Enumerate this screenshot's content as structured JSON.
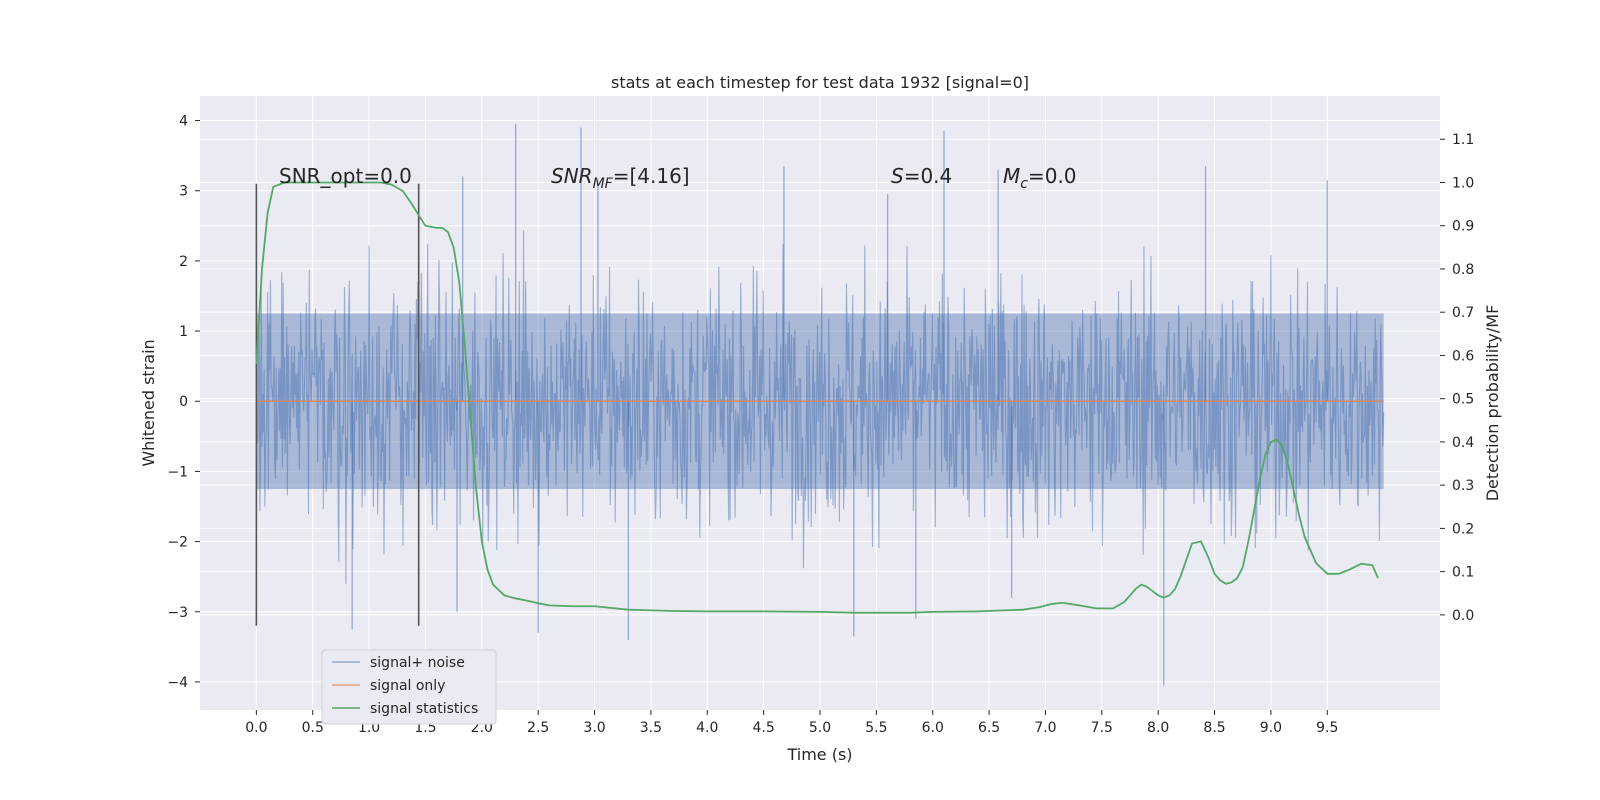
{
  "chart_data": {
    "type": "line",
    "title": "stats at each timestep for test data 1932 [signal=0]",
    "xlabel": "Time (s)",
    "ylabel": "Whitened strain",
    "ylabel_right": "Detection probability/MF",
    "xlim": [
      -0.5,
      10.5
    ],
    "ylim": [
      -4.4,
      4.35
    ],
    "ylim_right": [
      -0.22,
      1.2
    ],
    "xticks": [
      "0.0",
      "0.5",
      "1.0",
      "1.5",
      "2.0",
      "2.5",
      "3.0",
      "3.5",
      "4.0",
      "4.5",
      "5.0",
      "5.5",
      "6.0",
      "6.5",
      "7.0",
      "7.5",
      "8.0",
      "8.5",
      "9.0",
      "9.5"
    ],
    "yticks": [
      "4",
      "3",
      "2",
      "1",
      "0",
      "−1",
      "−2",
      "−3",
      "−4"
    ],
    "yticks_right": [
      "1.1",
      "1.0",
      "0.9",
      "0.8",
      "0.7",
      "0.6",
      "0.5",
      "0.4",
      "0.3",
      "0.2",
      "0.1",
      "0.0"
    ],
    "grid": true,
    "legend_position": "lower-left",
    "annotations": {
      "snr_opt": "SNR_opt=0.0",
      "snr_mf_base": "SNR",
      "snr_mf_sub": "MF",
      "snr_mf_rest": "=[4.16]",
      "s_sym": "S",
      "s_rest": "=0.4",
      "mc_base": "M",
      "mc_sub": "c",
      "mc_rest": "=0.0"
    },
    "markers": {
      "vertical_lines_x": [
        0.0,
        1.44
      ],
      "vertical_lines_y": [
        -3.2,
        3.1
      ]
    },
    "series": [
      {
        "name": "signal+ noise",
        "color": "#4c72b0",
        "kind": "noise",
        "x_range": [
          0.0,
          10.0
        ],
        "envelope_typical": 1.3,
        "peak_values": [
          [
            2.3,
            3.95
          ],
          [
            2.88,
            3.9
          ],
          [
            6.1,
            3.85
          ],
          [
            1.83,
            3.2
          ],
          [
            3.03,
            3.15
          ],
          [
            4.68,
            3.35
          ],
          [
            5.6,
            2.95
          ],
          [
            6.58,
            3.3
          ],
          [
            8.42,
            3.35
          ],
          [
            9.5,
            3.15
          ],
          [
            3.3,
            -3.4
          ],
          [
            8.05,
            -4.05
          ],
          [
            2.5,
            -3.3
          ],
          [
            0.85,
            -3.25
          ],
          [
            5.3,
            -3.35
          ],
          [
            5.85,
            -3.1
          ],
          [
            1.78,
            -3.0
          ],
          [
            6.7,
            -2.8
          ]
        ]
      },
      {
        "name": "signal only",
        "color": "#dd8452",
        "x": [
          0.0,
          10.0
        ],
        "y": [
          0.0,
          0.0
        ]
      },
      {
        "name": "signal statistics",
        "color": "#55a868",
        "axis": "right",
        "x": [
          0.0,
          0.05,
          0.1,
          0.15,
          0.25,
          0.5,
          0.8,
          1.0,
          1.1,
          1.2,
          1.3,
          1.38,
          1.45,
          1.5,
          1.6,
          1.65,
          1.7,
          1.75,
          1.8,
          1.85,
          1.9,
          1.95,
          2.0,
          2.05,
          2.1,
          2.2,
          2.3,
          2.4,
          2.5,
          2.6,
          2.8,
          3.0,
          3.3,
          3.7,
          4.0,
          4.5,
          5.0,
          5.3,
          5.8,
          6.0,
          6.4,
          6.8,
          6.95,
          7.05,
          7.15,
          7.3,
          7.45,
          7.6,
          7.7,
          7.8,
          7.85,
          7.9,
          7.95,
          8.0,
          8.05,
          8.1,
          8.15,
          8.2,
          8.3,
          8.38,
          8.45,
          8.5,
          8.55,
          8.6,
          8.65,
          8.7,
          8.75,
          8.8,
          8.9,
          8.95,
          9.0,
          9.05,
          9.1,
          9.15,
          9.2,
          9.25,
          9.3,
          9.4,
          9.5,
          9.6,
          9.7,
          9.8,
          9.9,
          9.95
        ],
        "y": [
          0.58,
          0.8,
          0.93,
          0.99,
          1.0,
          1.0,
          1.0,
          1.0,
          1.0,
          0.995,
          0.98,
          0.95,
          0.92,
          0.9,
          0.895,
          0.895,
          0.885,
          0.85,
          0.77,
          0.62,
          0.45,
          0.29,
          0.17,
          0.105,
          0.07,
          0.045,
          0.038,
          0.033,
          0.027,
          0.022,
          0.02,
          0.02,
          0.012,
          0.009,
          0.008,
          0.008,
          0.007,
          0.005,
          0.005,
          0.007,
          0.008,
          0.012,
          0.018,
          0.025,
          0.028,
          0.022,
          0.015,
          0.015,
          0.03,
          0.06,
          0.07,
          0.065,
          0.055,
          0.045,
          0.04,
          0.045,
          0.06,
          0.09,
          0.165,
          0.17,
          0.13,
          0.095,
          0.08,
          0.072,
          0.075,
          0.085,
          0.11,
          0.17,
          0.31,
          0.37,
          0.4,
          0.405,
          0.39,
          0.35,
          0.29,
          0.23,
          0.18,
          0.12,
          0.095,
          0.095,
          0.105,
          0.118,
          0.115,
          0.085
        ]
      }
    ]
  }
}
